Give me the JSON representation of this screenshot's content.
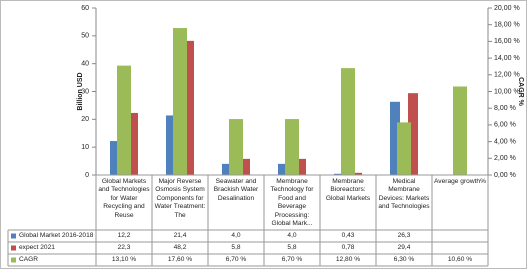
{
  "chart_data": {
    "type": "bar",
    "y_label": "Billion USD",
    "y2_label": "CAGR %",
    "categories": [
      "Global Markets and Technologies for Water Recycling and Reuse",
      "Major Reverse Osmosis System Components for Water Treatment: The",
      "Seawater and Brackish Water Desalination",
      "Membrane Technology for Food and Beverage Processing: Global Mark...",
      "Membrane Bioreactors: Global Markets",
      "Medical Membrane Devices: Markets and Technologies",
      "Average growth%"
    ],
    "series": [
      {
        "name": "Global Market 2016-2018",
        "color": "#4f81bd",
        "values": [
          12.2,
          21.4,
          4.0,
          4.0,
          0.43,
          26.3,
          null
        ],
        "value_labels": [
          "12,2",
          "21,4",
          "4,0",
          "4,0",
          "0,43",
          "26,3",
          null
        ]
      },
      {
        "name": "expect 2021",
        "color": "#c0504d",
        "values": [
          22.3,
          48.2,
          5.8,
          5.8,
          0.78,
          29.4,
          null
        ],
        "value_labels": [
          "22,3",
          "48,2",
          "5,8",
          "5,8",
          "0,78",
          "29,4",
          null
        ]
      },
      {
        "name": "CAGR",
        "color": "#9bbb59",
        "axis": "y2",
        "values": [
          13.1,
          17.6,
          6.7,
          6.7,
          12.8,
          6.3,
          10.6
        ],
        "value_labels": [
          "13,10 %",
          "17,60 %",
          "6,70 %",
          "6,70 %",
          "12,80 %",
          "6,30 %",
          "10,60 %"
        ]
      }
    ],
    "ylim": [
      0,
      60
    ],
    "yticks": [
      0,
      10,
      20,
      30,
      40,
      50,
      60
    ],
    "y2lim": [
      0,
      20
    ],
    "y2ticks": [
      {
        "value": 0,
        "label": "0,00 %"
      },
      {
        "value": 2,
        "label": "2,00 %"
      },
      {
        "value": 4,
        "label": "4,00 %"
      },
      {
        "value": 6,
        "label": "6,00 %"
      },
      {
        "value": 8,
        "label": "8,00 %"
      },
      {
        "value": 10,
        "label": "10,00 %"
      },
      {
        "value": 12,
        "label": "12,00 %"
      },
      {
        "value": 14,
        "label": "14,00 %"
      },
      {
        "value": 16,
        "label": "16,00 %"
      },
      {
        "value": 18,
        "label": "18,00 %"
      },
      {
        "value": 20,
        "label": "20,00 %"
      }
    ],
    "grid": false
  }
}
